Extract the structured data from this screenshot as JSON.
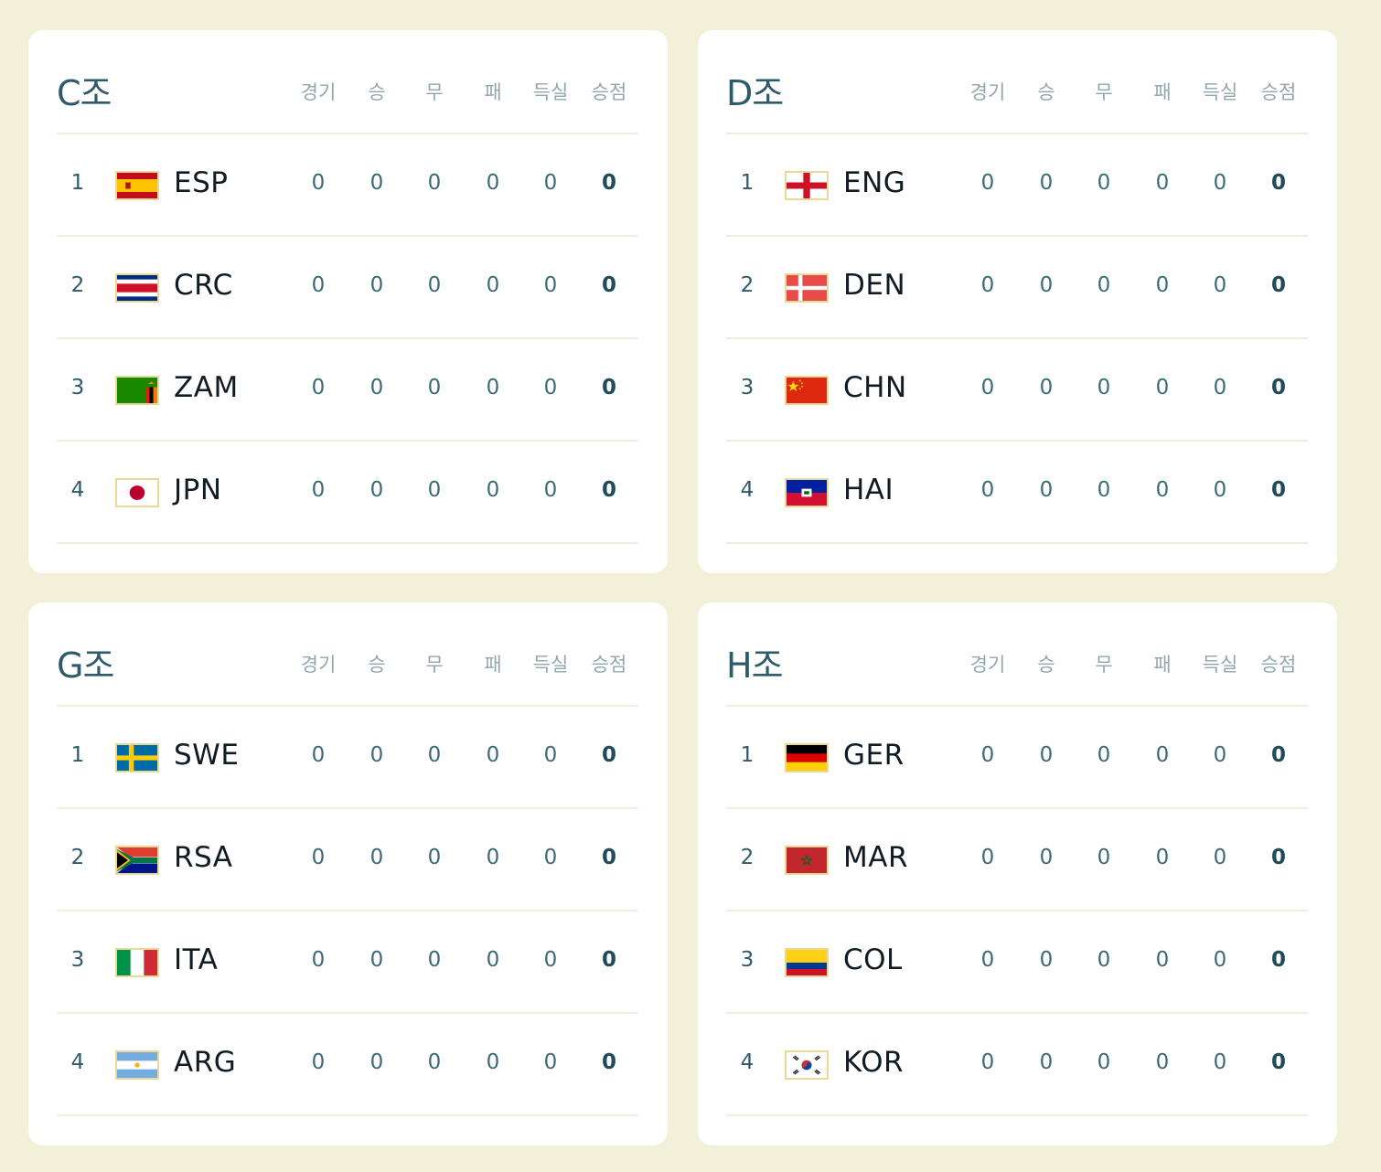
{
  "columns": [
    "경기",
    "승",
    "무",
    "패",
    "득실",
    "승점"
  ],
  "colors": {
    "background": "#f2f0d9",
    "card": "#ffffff",
    "heading": "#2f5a6a",
    "team_code": "#0f1c24",
    "flag_border": "#e9d896"
  },
  "groups": [
    {
      "name": "C조",
      "teams": [
        {
          "rank": "1",
          "code": "ESP",
          "flag": "spain-flag-icon",
          "stats": [
            "0",
            "0",
            "0",
            "0",
            "0",
            "0"
          ]
        },
        {
          "rank": "2",
          "code": "CRC",
          "flag": "costa-rica-flag-icon",
          "stats": [
            "0",
            "0",
            "0",
            "0",
            "0",
            "0"
          ]
        },
        {
          "rank": "3",
          "code": "ZAM",
          "flag": "zambia-flag-icon",
          "stats": [
            "0",
            "0",
            "0",
            "0",
            "0",
            "0"
          ]
        },
        {
          "rank": "4",
          "code": "JPN",
          "flag": "japan-flag-icon",
          "stats": [
            "0",
            "0",
            "0",
            "0",
            "0",
            "0"
          ]
        }
      ]
    },
    {
      "name": "D조",
      "teams": [
        {
          "rank": "1",
          "code": "ENG",
          "flag": "england-flag-icon",
          "stats": [
            "0",
            "0",
            "0",
            "0",
            "0",
            "0"
          ]
        },
        {
          "rank": "2",
          "code": "DEN",
          "flag": "denmark-flag-icon",
          "stats": [
            "0",
            "0",
            "0",
            "0",
            "0",
            "0"
          ]
        },
        {
          "rank": "3",
          "code": "CHN",
          "flag": "china-flag-icon",
          "stats": [
            "0",
            "0",
            "0",
            "0",
            "0",
            "0"
          ]
        },
        {
          "rank": "4",
          "code": "HAI",
          "flag": "haiti-flag-icon",
          "stats": [
            "0",
            "0",
            "0",
            "0",
            "0",
            "0"
          ]
        }
      ]
    },
    {
      "name": "G조",
      "teams": [
        {
          "rank": "1",
          "code": "SWE",
          "flag": "sweden-flag-icon",
          "stats": [
            "0",
            "0",
            "0",
            "0",
            "0",
            "0"
          ]
        },
        {
          "rank": "2",
          "code": "RSA",
          "flag": "south-africa-flag-icon",
          "stats": [
            "0",
            "0",
            "0",
            "0",
            "0",
            "0"
          ]
        },
        {
          "rank": "3",
          "code": "ITA",
          "flag": "italy-flag-icon",
          "stats": [
            "0",
            "0",
            "0",
            "0",
            "0",
            "0"
          ]
        },
        {
          "rank": "4",
          "code": "ARG",
          "flag": "argentina-flag-icon",
          "stats": [
            "0",
            "0",
            "0",
            "0",
            "0",
            "0"
          ]
        }
      ]
    },
    {
      "name": "H조",
      "teams": [
        {
          "rank": "1",
          "code": "GER",
          "flag": "germany-flag-icon",
          "stats": [
            "0",
            "0",
            "0",
            "0",
            "0",
            "0"
          ]
        },
        {
          "rank": "2",
          "code": "MAR",
          "flag": "morocco-flag-icon",
          "stats": [
            "0",
            "0",
            "0",
            "0",
            "0",
            "0"
          ]
        },
        {
          "rank": "3",
          "code": "COL",
          "flag": "colombia-flag-icon",
          "stats": [
            "0",
            "0",
            "0",
            "0",
            "0",
            "0"
          ]
        },
        {
          "rank": "4",
          "code": "KOR",
          "flag": "korea-flag-icon",
          "stats": [
            "0",
            "0",
            "0",
            "0",
            "0",
            "0"
          ]
        }
      ]
    }
  ]
}
